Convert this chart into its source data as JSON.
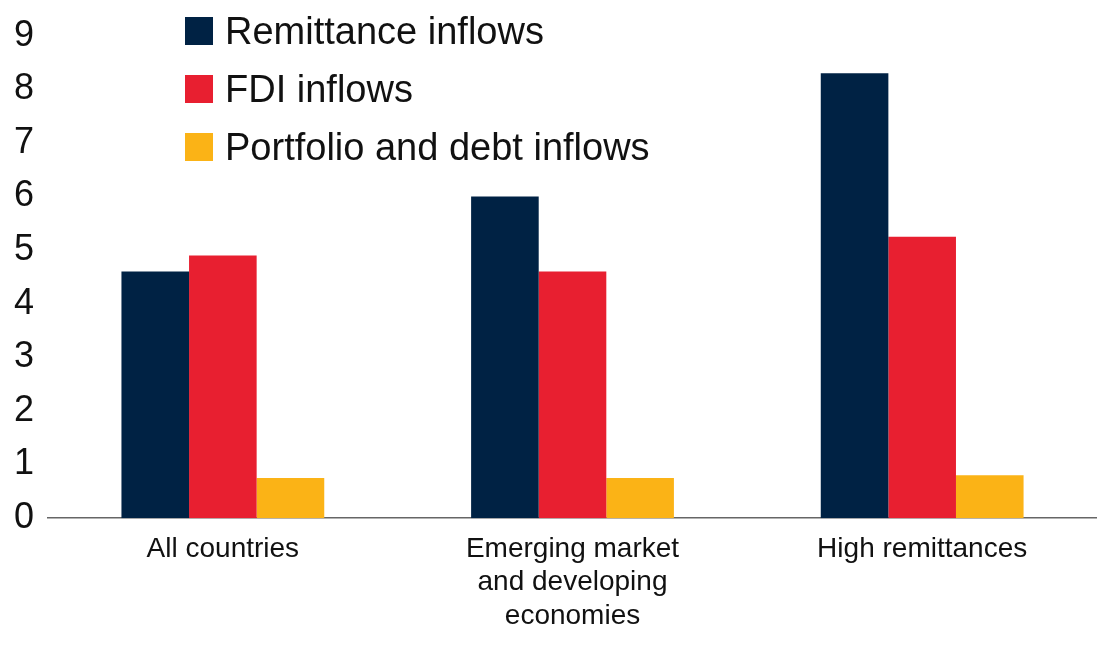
{
  "chart_data": {
    "type": "bar",
    "categories": [
      "All countries",
      "Emerging market and developing economies",
      "High remittances"
    ],
    "series": [
      {
        "name": "Remittance inflows",
        "color": "#002244",
        "values": [
          4.6,
          6.0,
          8.3
        ]
      },
      {
        "name": "FDI inflows",
        "color": "#e81f30",
        "values": [
          4.9,
          4.6,
          5.25
        ]
      },
      {
        "name": "Portfolio and debt inflows",
        "color": "#fbb316",
        "values": [
          0.75,
          0.75,
          0.8
        ]
      }
    ],
    "ylim": [
      0,
      9
    ],
    "yticks": [
      0,
      1,
      2,
      3,
      4,
      5,
      6,
      7,
      8,
      9
    ],
    "grid": false,
    "legend": "top left"
  }
}
